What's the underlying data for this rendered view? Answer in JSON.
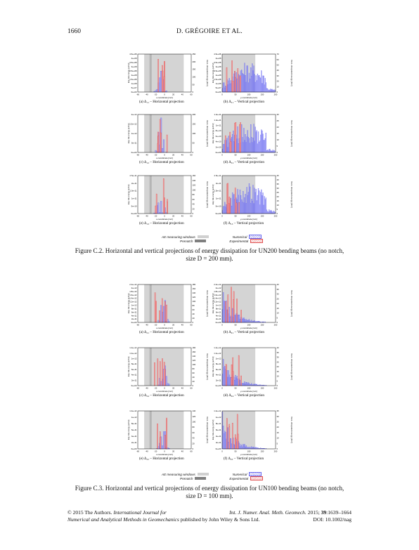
{
  "header": {
    "page_number": "1660",
    "authors": "D. GRÉGOIRE ET AL."
  },
  "legend": {
    "aew_label": "AE measuring windows",
    "prenotch_label": "Prenotch",
    "numerical_label": "Numerical",
    "experimental_label": "Experimental"
  },
  "colors": {
    "numerical": "#5b5bf0",
    "experimental": "#e23c3c",
    "aew": "#d4d4d4",
    "prenotch": "#808080"
  },
  "figure_c2": {
    "caption_line1": "Figure C.2. Horizontal and vertical projections of energy dissipation for UN200 bending beams (no notch,",
    "caption_line2": "size D = 200 mm).",
    "panels": [
      {
        "label": "(a) Δ₁₁ – Horizontal projection",
        "xlabel": "x-coordinate [mm]",
        "ylabel_left": "Exp. AE energy [aJ/m²]",
        "ylabel_right": "Num. dissipated energy [J/m²]",
        "left_ticks": [
          "4.5e+08",
          "4e+08",
          "3.5e+08",
          "3e+08",
          "2.5e+08",
          "2e+08",
          "1.5e+08",
          "1e+08",
          "5e+07",
          "0e+00"
        ],
        "right_ticks": [
          "250",
          "200",
          "150",
          "100",
          "50",
          "0"
        ],
        "x_ticks": [
          "-60",
          "-40",
          "-20",
          "0",
          "20",
          "40",
          "60"
        ]
      },
      {
        "label": "(b) Δ₁₁ – Vertical projection",
        "xlabel": "y-coordinate [mm]",
        "ylabel_left": "Exp. AE energy [aJ/m²]",
        "ylabel_right": "Num. dissipated energy [J/m²]",
        "left_ticks": [
          "4.5e+08",
          "4e+08",
          "3.5e+08",
          "3e+08",
          "2.5e+08",
          "2e+08",
          "1.5e+08",
          "1e+08",
          "5e+07",
          "0e+00"
        ],
        "right_ticks": [
          "70",
          "60",
          "50",
          "40",
          "30",
          "20",
          "10",
          "0"
        ],
        "x_ticks": [
          "0",
          "50",
          "100",
          "150",
          "200"
        ]
      },
      {
        "label": "(c) Δ₁₂ – Horizontal projection",
        "xlabel": "x-coordinate [mm]",
        "ylabel_left": "Exp. AE energy [aJ/m²]",
        "ylabel_right": "Num. dissipated energy [J/m²]",
        "left_ticks": [
          "2e+12",
          "1.5e+12",
          "1e+12",
          "5e+11",
          "0e+00"
        ],
        "right_ticks": [
          "200",
          "150",
          "100",
          "50",
          "0"
        ],
        "x_ticks": [
          "-60",
          "-40",
          "-20",
          "0",
          "20",
          "40",
          "60"
        ]
      },
      {
        "label": "(d) Δ₁₂ – Vertical projection",
        "xlabel": "y-coordinate [mm]",
        "ylabel_left": "Exp. AE energy [aJ/m²]",
        "ylabel_right": "Num. dissipated energy [J/m²]",
        "left_ticks": [
          "1.4e+11",
          "1.2e+11",
          "1e+11",
          "8e+10",
          "6e+10",
          "4e+10",
          "2e+10",
          "0e+00"
        ],
        "right_ticks": [
          "30",
          "25",
          "20",
          "15",
          "10",
          "5",
          "0"
        ],
        "x_ticks": [
          "0",
          "50",
          "100",
          "150",
          "200"
        ]
      },
      {
        "label": "(e) Δ₁₃ – Horizontal projection",
        "xlabel": "x-coordinate [mm]",
        "ylabel_left": "Exp. AE energy [aJ/m²]",
        "ylabel_right": "Num. dissipated energy [J/m²]",
        "left_ticks": [
          "2.5e+11",
          "2e+11",
          "1.5e+11",
          "1e+11",
          "5e+10",
          "0e+00"
        ],
        "right_ticks": [
          "160",
          "140",
          "120",
          "100",
          "80",
          "60",
          "40",
          "20",
          "0"
        ],
        "x_ticks": [
          "-60",
          "-40",
          "-20",
          "0",
          "20",
          "40",
          "60"
        ]
      },
      {
        "label": "(f) Δ₁₃ – Vertical projection",
        "xlabel": "y-coordinate [mm]",
        "ylabel_left": "Exp. AE energy [aJ/m²]",
        "ylabel_right": "Num. dissipated energy [J/m²]",
        "left_ticks": [
          "2.5e+11",
          "2e+11",
          "1.5e+11",
          "1e+11",
          "5e+10",
          "0e+00"
        ],
        "right_ticks": [
          "45",
          "40",
          "35",
          "30",
          "25",
          "20",
          "15",
          "10",
          "5",
          "0"
        ],
        "x_ticks": [
          "0",
          "50",
          "100",
          "150",
          "200"
        ]
      }
    ]
  },
  "figure_c3": {
    "caption_line1": "Figure C.3. Horizontal and vertical projections of energy dissipation for UN100 bending beams (no notch,",
    "caption_line2": "size D = 100 mm).",
    "panels": [
      {
        "label": "(a) Δ₂₁ – Horizontal projection",
        "xlabel": "x-coordinate [mm]",
        "ylabel_left": "Exp. AE energy [aJ/m²]",
        "ylabel_right": "Num. dissipated energy [J/m²]",
        "left_ticks": [
          "2.2e+12",
          "2e+12",
          "1.8e+12",
          "1.6e+12",
          "1.4e+12",
          "1.2e+12",
          "1e+12",
          "8e+11",
          "6e+11",
          "4e+11",
          "2e+11",
          "0e+00"
        ],
        "right_ticks": [
          "180",
          "160",
          "140",
          "120",
          "100",
          "80",
          "60",
          "40",
          "20",
          "0"
        ],
        "x_ticks": [
          "-60",
          "-40",
          "-20",
          "0",
          "20",
          "40",
          "60"
        ]
      },
      {
        "label": "(b) Δ₂₁ – Vertical projection",
        "xlabel": "y-coordinate [mm]",
        "ylabel_left": "Exp. AE energy [aJ/m²]",
        "ylabel_right": "Num. dissipated energy [J/m²]",
        "left_ticks": [
          "2.2e+12",
          "2e+12",
          "1.8e+12",
          "1.6e+12",
          "1.4e+12",
          "1.2e+12",
          "1e+12",
          "8e+11",
          "6e+11",
          "4e+11",
          "2e+11",
          "0e+00"
        ],
        "right_ticks": [
          "40",
          "35",
          "30",
          "25",
          "20",
          "15",
          "10",
          "5",
          "0"
        ],
        "x_ticks": [
          "0",
          "50",
          "100",
          "150",
          "200"
        ]
      },
      {
        "label": "(c) Δ₂₄ – Horizontal projection",
        "xlabel": "x-coordinate [mm]",
        "ylabel_left": "Exp. AE energy [aJ/m²]",
        "ylabel_right": "Num. dissipated energy [J/m²]",
        "left_ticks": [
          "1.4e+12",
          "1.2e+12",
          "1e+12",
          "8e+11",
          "6e+11",
          "4e+11",
          "2e+11",
          "0e+00"
        ],
        "right_ticks": [
          "180",
          "160",
          "140",
          "120",
          "100",
          "80",
          "60",
          "40",
          "20",
          "0"
        ],
        "x_ticks": [
          "-60",
          "-40",
          "-20",
          "0",
          "20",
          "40",
          "60"
        ]
      },
      {
        "label": "(d) Δ₂₄ – Vertical projection",
        "xlabel": "y-coordinate [mm]",
        "ylabel_left": "Exp. AE energy [aJ/m²]",
        "ylabel_right": "Num. dissipated energy [J/m²]",
        "left_ticks": [
          "1.4e+12",
          "1.2e+12",
          "1e+12",
          "8e+11",
          "6e+11",
          "4e+11",
          "2e+11",
          "0e+00"
        ],
        "right_ticks": [
          "40",
          "35",
          "30",
          "25",
          "20",
          "15",
          "10",
          "5",
          "0"
        ],
        "x_ticks": [
          "0",
          "50",
          "100",
          "150",
          "200"
        ]
      },
      {
        "label": "(e) Δ₂₅ – Horizontal projection",
        "xlabel": "x-coordinate [mm]",
        "ylabel_left": "Exp. AE energy [aJ/m²]",
        "ylabel_right": "Num. dissipated energy [J/m²]",
        "left_ticks": [
          "1.2e+12",
          "1e+12",
          "8e+11",
          "6e+11",
          "4e+11",
          "2e+11",
          "0e+00"
        ],
        "right_ticks": [
          "140",
          "120",
          "100",
          "80",
          "60",
          "40",
          "20",
          "0"
        ],
        "x_ticks": [
          "-60",
          "-40",
          "-20",
          "0",
          "20",
          "40",
          "60"
        ]
      },
      {
        "label": "(f) Δ₂₅ – Vertical projection",
        "xlabel": "y-coordinate [mm]",
        "ylabel_left": "Exp. AE energy [aJ/m²]",
        "ylabel_right": "Num. dissipated energy [J/m²]",
        "left_ticks": [
          "1.2e+12",
          "1e+12",
          "8e+11",
          "6e+11",
          "4e+11",
          "2e+11",
          "0e+00"
        ],
        "right_ticks": [
          "35",
          "30",
          "25",
          "20",
          "15",
          "10",
          "5",
          "0"
        ],
        "x_ticks": [
          "0",
          "50",
          "100",
          "150",
          "200"
        ]
      }
    ]
  },
  "footer": {
    "copyright": "© 2015 The Authors. ",
    "journal_italic": "International Journal for",
    "journal_line2_italic": "Numerical and Analytical Methods in Geomechanics",
    "publisher": " published by John Wiley & Sons Ltd.",
    "citation_italic": "Int. J. Numer. Anal. Meth. Geomech.",
    "citation_rest": " 2015; ",
    "volume": "39",
    "pages": ":1639–1664",
    "doi": "DOI: 10.1002/nag"
  }
}
